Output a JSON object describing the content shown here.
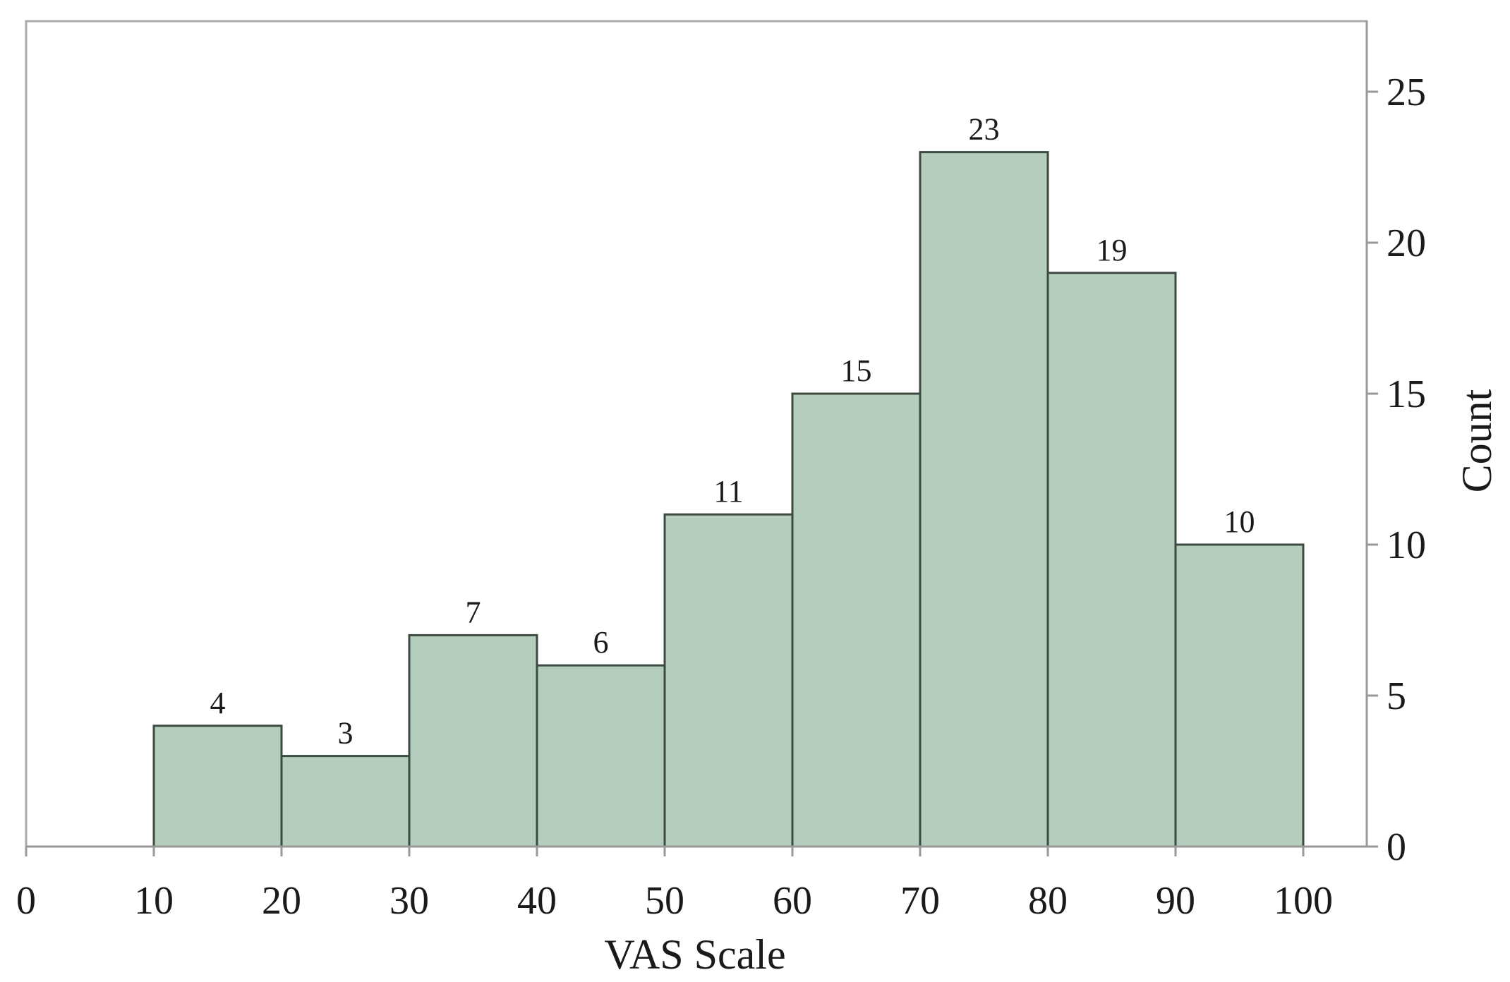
{
  "chart_data": {
    "type": "bar",
    "subtype": "histogram",
    "title": "",
    "xlabel": "VAS Scale",
    "ylabel": "Count",
    "y_axis_side": "right",
    "bins": [
      {
        "start": 10,
        "end": 20,
        "value": 4
      },
      {
        "start": 20,
        "end": 30,
        "value": 3
      },
      {
        "start": 30,
        "end": 40,
        "value": 7
      },
      {
        "start": 40,
        "end": 50,
        "value": 6
      },
      {
        "start": 50,
        "end": 60,
        "value": 11
      },
      {
        "start": 60,
        "end": 70,
        "value": 15
      },
      {
        "start": 70,
        "end": 80,
        "value": 23
      },
      {
        "start": 80,
        "end": 90,
        "value": 19
      },
      {
        "start": 90,
        "end": 100,
        "value": 10
      }
    ],
    "xlim": [
      0,
      105
    ],
    "ylim": [
      0,
      27
    ],
    "x_ticks": [
      "0",
      "10",
      "20",
      "30",
      "40",
      "50",
      "60",
      "70",
      "80",
      "90",
      "100"
    ],
    "y_ticks": [
      "0",
      "5",
      "10",
      "15",
      "20",
      "25"
    ],
    "grid": false,
    "colors": {
      "bar_fill": "#b5cdbc",
      "bar_stroke": "#3c4a40",
      "axis": "#999999"
    }
  }
}
